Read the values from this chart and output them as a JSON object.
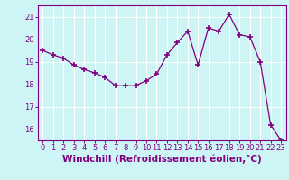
{
  "x": [
    0,
    1,
    2,
    3,
    4,
    5,
    6,
    7,
    8,
    9,
    10,
    11,
    12,
    13,
    14,
    15,
    16,
    17,
    18,
    19,
    20,
    21,
    22,
    23
  ],
  "y": [
    19.5,
    19.3,
    19.15,
    18.85,
    18.65,
    18.5,
    18.3,
    17.95,
    17.95,
    17.95,
    18.15,
    18.45,
    19.3,
    19.85,
    20.35,
    18.85,
    20.5,
    20.35,
    21.1,
    20.2,
    20.1,
    19.0,
    16.2,
    15.5
  ],
  "line_color": "#800080",
  "marker": "+",
  "marker_size": 4,
  "marker_lw": 1.2,
  "background_color": "#cef5f5",
  "grid_color": "#ffffff",
  "xlabel": "Windchill (Refroidissement éolien,°C)",
  "ylim": [
    15.5,
    21.5
  ],
  "xlim": [
    -0.5,
    23.5
  ],
  "yticks": [
    16,
    17,
    18,
    19,
    20,
    21
  ],
  "xticks": [
    0,
    1,
    2,
    3,
    4,
    5,
    6,
    7,
    8,
    9,
    10,
    11,
    12,
    13,
    14,
    15,
    16,
    17,
    18,
    19,
    20,
    21,
    22,
    23
  ],
  "tick_color": "#800080",
  "label_color": "#800080",
  "xlabel_fontsize": 7.5,
  "tick_fontsize": 6.0,
  "linewidth": 0.9
}
